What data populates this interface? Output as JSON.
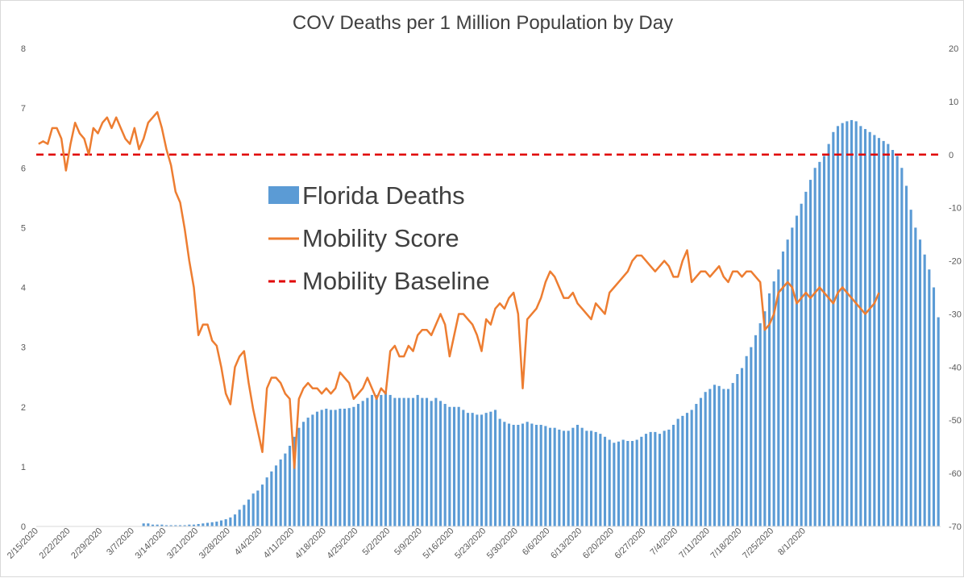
{
  "chart_data": {
    "type": "bar+line",
    "title": "COV Deaths per 1 Million Population by Day",
    "xlabel": "",
    "ylabel_left": "",
    "ylabel_right": "",
    "left_axis": {
      "min": 0,
      "max": 8,
      "ticks": [
        "0",
        "1",
        "2",
        "3",
        "4",
        "5",
        "6",
        "7",
        "8"
      ]
    },
    "right_axis": {
      "min": -70,
      "max": 20,
      "ticks": [
        "-70",
        "-60",
        "-50",
        "-40",
        "-30",
        "-20",
        "-10",
        "0",
        "10",
        "20"
      ]
    },
    "x_start_date": "2020-02-15",
    "x_tick_labels": [
      "2/15/2020",
      "2/22/2020",
      "2/29/2020",
      "3/7/2020",
      "3/14/2020",
      "3/21/2020",
      "3/28/2020",
      "4/4/2020",
      "4/11/2020",
      "4/18/2020",
      "4/25/2020",
      "5/2/2020",
      "5/9/2020",
      "5/16/2020",
      "5/23/2020",
      "5/30/2020",
      "6/6/2020",
      "6/13/2020",
      "6/20/2020",
      "6/27/2020",
      "7/4/2020",
      "7/11/2020",
      "7/18/2020",
      "7/25/2020",
      "8/1/2020"
    ],
    "grid": false,
    "legend": [
      {
        "name": "Florida Deaths",
        "type": "bar",
        "color": "#5b9bd5"
      },
      {
        "name": "Mobility Score",
        "type": "line",
        "color": "#ed7d31"
      },
      {
        "name": "Mobility Baseline",
        "type": "dashed-line",
        "color": "#e00000"
      }
    ],
    "series": [
      {
        "name": "Florida Deaths",
        "axis": "left",
        "color": "#5b9bd5",
        "values": [
          0,
          0,
          0,
          0,
          0,
          0,
          0,
          0,
          0,
          0,
          0,
          0,
          0,
          0,
          0,
          0,
          0,
          0,
          0,
          0,
          0,
          0,
          0,
          0.05,
          0.05,
          0.03,
          0.03,
          0.03,
          0.02,
          0.02,
          0.02,
          0.02,
          0.02,
          0.03,
          0.03,
          0.04,
          0.05,
          0.06,
          0.07,
          0.08,
          0.1,
          0.12,
          0.15,
          0.2,
          0.28,
          0.36,
          0.45,
          0.55,
          0.6,
          0.7,
          0.82,
          0.92,
          1.02,
          1.12,
          1.22,
          1.35,
          1.5,
          1.65,
          1.75,
          1.82,
          1.87,
          1.92,
          1.95,
          1.97,
          1.95,
          1.95,
          1.97,
          1.97,
          1.98,
          2.0,
          2.05,
          2.1,
          2.15,
          2.2,
          2.2,
          2.2,
          2.25,
          2.2,
          2.15,
          2.15,
          2.15,
          2.15,
          2.15,
          2.2,
          2.15,
          2.15,
          2.1,
          2.15,
          2.1,
          2.05,
          2.0,
          2.0,
          2.0,
          1.95,
          1.9,
          1.9,
          1.87,
          1.87,
          1.9,
          1.92,
          1.95,
          1.8,
          1.75,
          1.72,
          1.7,
          1.7,
          1.72,
          1.75,
          1.72,
          1.7,
          1.7,
          1.68,
          1.65,
          1.65,
          1.62,
          1.6,
          1.6,
          1.65,
          1.7,
          1.65,
          1.6,
          1.6,
          1.58,
          1.55,
          1.5,
          1.45,
          1.4,
          1.42,
          1.45,
          1.43,
          1.43,
          1.45,
          1.5,
          1.55,
          1.58,
          1.58,
          1.55,
          1.6,
          1.62,
          1.7,
          1.8,
          1.85,
          1.9,
          1.95,
          2.05,
          2.15,
          2.25,
          2.3,
          2.37,
          2.35,
          2.3,
          2.3,
          2.4,
          2.55,
          2.65,
          2.85,
          3.0,
          3.2,
          3.4,
          3.6,
          3.9,
          4.1,
          4.3,
          4.6,
          4.8,
          5.0,
          5.2,
          5.4,
          5.6,
          5.8,
          6.0,
          6.1,
          6.2,
          6.4,
          6.6,
          6.7,
          6.75,
          6.78,
          6.8,
          6.78,
          6.7,
          6.65,
          6.6,
          6.55,
          6.5,
          6.45,
          6.4,
          6.3,
          6.2,
          6.0,
          5.7,
          5.3,
          5.0,
          4.8,
          4.55,
          4.3,
          4.0,
          3.5
        ],
        "note": ""
      },
      {
        "name": "Mobility Score",
        "axis": "right",
        "color": "#ed7d31",
        "values": [
          2,
          2.5,
          2,
          5,
          5,
          3,
          -3,
          2,
          6,
          4,
          3,
          0,
          5,
          4,
          6,
          7,
          5,
          7,
          5,
          3,
          2,
          5,
          1,
          3,
          6,
          7,
          8,
          5,
          1,
          -2,
          -7,
          -9,
          -14,
          -20,
          -25,
          -34,
          -32,
          -32,
          -35,
          -36,
          -40,
          -45,
          -47,
          -40,
          -38,
          -37,
          -43,
          -48,
          -52,
          -56,
          -44,
          -42,
          -42,
          -43,
          -45,
          -46,
          -59,
          -46,
          -44,
          -43,
          -44,
          -44,
          -45,
          -44,
          -45,
          -44,
          -41,
          -42,
          -43,
          -46,
          -45,
          -44,
          -42,
          -44,
          -46,
          -44,
          -45,
          -37,
          -36,
          -38,
          -38,
          -36,
          -37,
          -34,
          -33,
          -33,
          -34,
          -32,
          -30,
          -32,
          -38,
          -34,
          -30,
          -30,
          -31,
          -32,
          -34,
          -37,
          -31,
          -32,
          -29,
          -28,
          -29,
          -27,
          -26,
          -30,
          -44,
          -31,
          -30,
          -29,
          -27,
          -24,
          -22,
          -23,
          -25,
          -27,
          -27,
          -26,
          -28,
          -29,
          -30,
          -31,
          -28,
          -29,
          -30,
          -26,
          -25,
          -24,
          -23,
          -22,
          -20,
          -19,
          -19,
          -20,
          -21,
          -22,
          -21,
          -20,
          -21,
          -23,
          -23,
          -20,
          -18,
          -24,
          -23,
          -22,
          -22,
          -23,
          -22,
          -21,
          -23,
          -24,
          -22,
          -22,
          -23,
          -22,
          -22,
          -23,
          -24,
          -33,
          -32,
          -30,
          -26,
          -25,
          -24,
          -25,
          -28,
          -27,
          -26,
          -27,
          -26,
          -25,
          -26,
          -27,
          -28,
          -26,
          -25,
          -26,
          -27,
          -28,
          -29,
          -30,
          -29,
          -28,
          -26
        ],
        "note": ""
      },
      {
        "name": "Mobility Baseline",
        "axis": "right",
        "color": "#e00000",
        "values": [
          0
        ],
        "note": ""
      }
    ]
  }
}
